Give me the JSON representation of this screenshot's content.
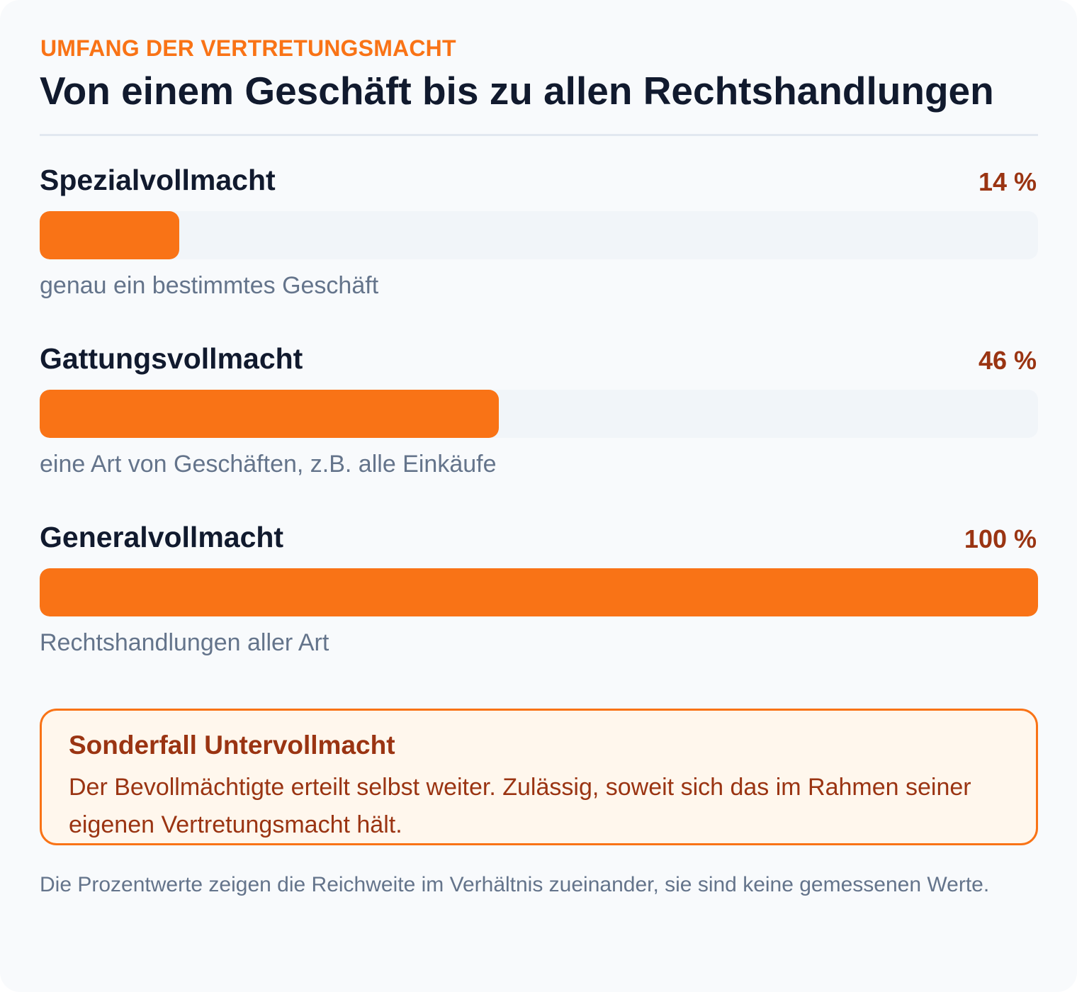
{
  "header": {
    "eyebrow": "UMFANG DER VERTRETUNGSMACHT",
    "title": "Von einem Geschäft bis zu allen Rechtshandlungen"
  },
  "chart_data": {
    "type": "bar",
    "orientation": "horizontal",
    "categories": [
      "Spezialvollmacht",
      "Gattungsvollmacht",
      "Generalvollmacht"
    ],
    "values": [
      14,
      46,
      100
    ],
    "value_labels": [
      "14 %",
      "46 %",
      "100 %"
    ],
    "descriptions": [
      "genau ein bestimmtes Geschäft",
      "eine Art von Geschäften, z.B. alle Einkäufe",
      "Rechtshandlungen aller Art"
    ],
    "xlim": [
      0,
      100
    ],
    "bar_color": "#f97316",
    "track_color": "#f1f5f9",
    "grid": false
  },
  "callout": {
    "title": "Sonderfall Untervollmacht",
    "text": "Der Bevollmächtigte erteilt selbst weiter. Zulässig, soweit sich das im Rahmen seiner eigenen Vertretungsmacht hält."
  },
  "footnote": "Die Prozentwerte zeigen die Reichweite im Verhältnis zueinander, sie sind keine gemessenen Werte.",
  "colors": {
    "accent": "#f97316",
    "value_text": "#9a3412",
    "heading": "#111a2e",
    "muted": "#64748b",
    "callout_bg": "#fff7ed"
  }
}
